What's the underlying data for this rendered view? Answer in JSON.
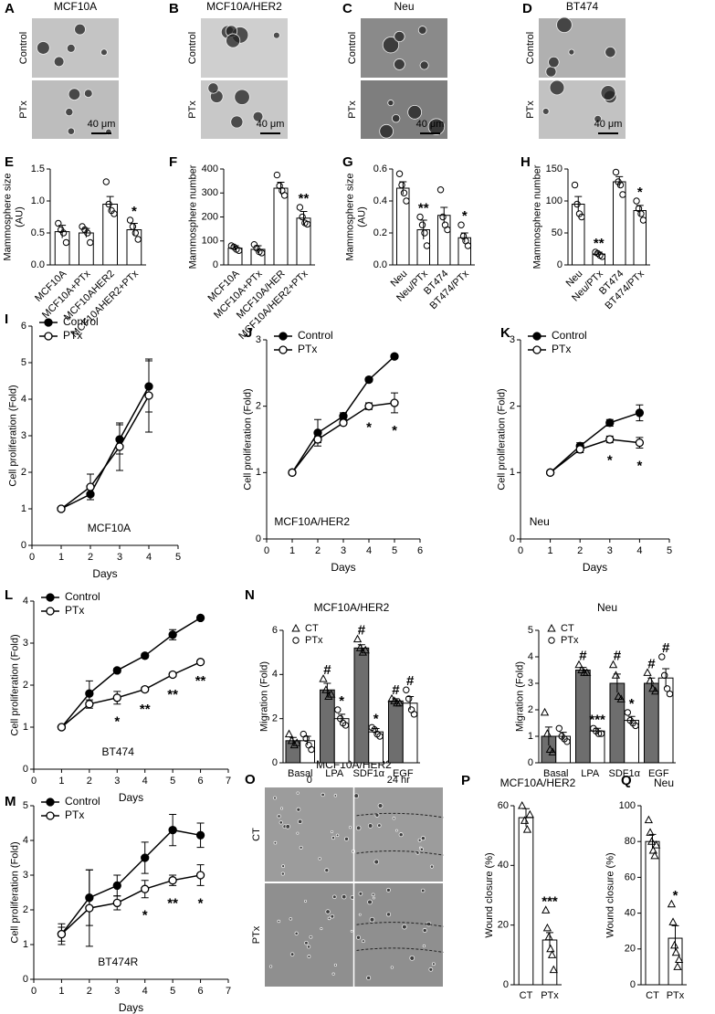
{
  "micrographs": [
    {
      "letter": "A",
      "title": "MCF10A",
      "rows": [
        "Control",
        "PTx"
      ],
      "scale_bar": "40 μm"
    },
    {
      "letter": "B",
      "title": "MCF10A/HER2",
      "rows": [
        "Control",
        "PTx"
      ],
      "scale_bar": "40 μm"
    },
    {
      "letter": "C",
      "title": "Neu",
      "rows": [
        "Control",
        "PTx"
      ],
      "scale_bar": "40 μm"
    },
    {
      "letter": "D",
      "title": "BT474",
      "rows": [
        "Control",
        "PTx"
      ],
      "scale_bar": "40 μm"
    },
    {
      "letter": "O",
      "title": "MCF10A/HER2",
      "columns": [
        "0",
        "24 hr"
      ],
      "rows": [
        "CT",
        "PTx"
      ]
    }
  ],
  "chart_data": [
    {
      "type": "bar",
      "letter": "E",
      "ylabel": [
        "Mammosphere size",
        "(AU)"
      ],
      "categories": [
        "MCF10A",
        "MCF10A+PTx",
        "MCF10AHER2",
        "MCF10AHER2+PTx"
      ],
      "values": [
        0.52,
        0.5,
        0.95,
        0.55
      ],
      "errors": [
        0.1,
        0.07,
        0.12,
        0.1
      ],
      "points": [
        [
          0.65,
          0.55,
          0.5,
          0.35
        ],
        [
          0.6,
          0.55,
          0.5,
          0.35
        ],
        [
          1.3,
          0.95,
          0.85,
          0.8
        ],
        [
          0.7,
          0.6,
          0.5,
          0.4
        ]
      ],
      "sig_labels": [
        null,
        null,
        null,
        "*"
      ],
      "color": "#ffffff",
      "point_marker": "circle",
      "ylim": [
        0,
        1.5
      ],
      "yticks": [
        {
          "value": 0,
          "label": "0.0"
        },
        0.5,
        {
          "value": 1,
          "label": "1.0"
        },
        1.5
      ]
    },
    {
      "type": "bar",
      "letter": "F",
      "ylabel": [
        "Mammosphere number"
      ],
      "categories": [
        "MCF10A",
        "MCF10A+PTx",
        "MCF10A/HER",
        "MCF10A/HER2+PTx"
      ],
      "values": [
        70,
        65,
        320,
        195
      ],
      "errors": [
        10,
        15,
        25,
        28
      ],
      "points": [
        [
          80,
          75,
          65,
          60
        ],
        [
          85,
          70,
          55,
          50
        ],
        [
          375,
          330,
          310,
          290
        ],
        [
          240,
          200,
          175,
          170
        ]
      ],
      "sig_labels": [
        null,
        null,
        null,
        "**"
      ],
      "color": "#ffffff",
      "point_marker": "circle",
      "ylim": [
        0,
        400
      ],
      "yticks": [
        0,
        100,
        200,
        300,
        400
      ]
    },
    {
      "type": "bar",
      "letter": "G",
      "ylabel": [
        "Mammosphere size",
        "(AU)"
      ],
      "categories": [
        "Neu",
        "Neu/PTx",
        "BT474",
        "BT474/PTx"
      ],
      "values": [
        0.48,
        0.22,
        0.31,
        0.17
      ],
      "errors": [
        0.04,
        0.06,
        0.05,
        0.03
      ],
      "points": [
        [
          0.57,
          0.5,
          0.45,
          0.4
        ],
        [
          0.3,
          0.25,
          0.2,
          0.12
        ],
        [
          0.47,
          0.3,
          0.25,
          0.22
        ],
        [
          0.25,
          0.18,
          0.15,
          0.12
        ]
      ],
      "sig_labels": [
        null,
        "**",
        null,
        "*"
      ],
      "color": "#ffffff",
      "point_marker": "circle",
      "ylim": [
        0,
        0.6
      ],
      "yticks": [
        {
          "value": 0,
          "label": "0.0"
        },
        0.2,
        0.4,
        0.6
      ]
    },
    {
      "type": "bar",
      "letter": "H",
      "ylabel": [
        "Mammosphere number"
      ],
      "categories": [
        "Neu",
        "Neu/PTx",
        "BT474",
        "BT474/PTx"
      ],
      "values": [
        95,
        17,
        130,
        85
      ],
      "errors": [
        12,
        3,
        8,
        8
      ],
      "points": [
        [
          125,
          95,
          80,
          75
        ],
        [
          20,
          18,
          15,
          13
        ],
        [
          145,
          130,
          125,
          110
        ],
        [
          100,
          88,
          80,
          70
        ]
      ],
      "sig_labels": [
        null,
        "**",
        null,
        "*"
      ],
      "color": "#ffffff",
      "point_marker": "circle",
      "ylim": [
        0,
        150
      ],
      "yticks": [
        0,
        50,
        100,
        150
      ]
    },
    {
      "type": "line",
      "letter": "I",
      "annotation": "MCF10A",
      "xlabel": "Days",
      "ylabel": [
        "Cell proliferation (Fold)"
      ],
      "x": [
        1,
        2,
        3,
        4
      ],
      "series": [
        {
          "name": "Control",
          "color": "#000000",
          "fill": "#000000",
          "values": [
            1,
            1.4,
            2.9,
            4.35
          ],
          "errors": [
            0.05,
            0.15,
            0.4,
            0.7
          ]
        },
        {
          "name": "PTx",
          "color": "#000000",
          "fill": "#ffffff",
          "values": [
            1,
            1.6,
            2.7,
            4.1
          ],
          "errors": [
            0.05,
            0.35,
            0.65,
            1.0
          ]
        }
      ],
      "xlim": [
        0,
        5
      ],
      "xticks": [
        0,
        1,
        2,
        3,
        4,
        5
      ],
      "ylim": [
        0,
        6
      ],
      "yticks": [
        0,
        1,
        2,
        3,
        4,
        5,
        6
      ]
    },
    {
      "type": "line",
      "letter": "J",
      "annotation": "MCF10A/HER2",
      "xlabel": "Days",
      "ylabel": [
        "Cell proliferation (Fold)"
      ],
      "x": [
        1,
        2,
        3,
        4,
        5
      ],
      "series": [
        {
          "name": "Control",
          "color": "#000000",
          "fill": "#000000",
          "values": [
            1,
            1.6,
            1.85,
            2.4,
            2.75
          ],
          "errors": [
            0.03,
            0.2,
            0.05,
            0.03,
            0.03
          ]
        },
        {
          "name": "PTx",
          "color": "#000000",
          "fill": "#ffffff",
          "values": [
            1,
            1.5,
            1.75,
            2.0,
            2.05
          ],
          "errors": [
            0.03,
            0.05,
            0.03,
            0.05,
            0.15
          ],
          "sig_labels": [
            null,
            null,
            null,
            "*",
            "*"
          ]
        }
      ],
      "xlim": [
        0,
        6
      ],
      "xticks": [
        0,
        1,
        2,
        3,
        4,
        5,
        6
      ],
      "ylim": [
        0,
        3
      ],
      "yticks": [
        0,
        1,
        2,
        3
      ]
    },
    {
      "type": "line",
      "letter": "K",
      "annotation": "Neu",
      "xlabel": "Days",
      "ylabel": [
        "Cell proliferation (Fold)"
      ],
      "x": [
        1,
        2,
        3,
        4
      ],
      "series": [
        {
          "name": "Control",
          "color": "#000000",
          "fill": "#000000",
          "values": [
            1,
            1.4,
            1.75,
            1.9
          ],
          "errors": [
            0.03,
            0.05,
            0.05,
            0.12
          ]
        },
        {
          "name": "PTx",
          "color": "#000000",
          "fill": "#ffffff",
          "values": [
            1,
            1.35,
            1.5,
            1.45
          ],
          "errors": [
            0.03,
            0.05,
            0.05,
            0.08
          ],
          "sig_labels": [
            null,
            null,
            "*",
            "*"
          ]
        }
      ],
      "xlim": [
        0,
        5
      ],
      "xticks": [
        0,
        1,
        2,
        3,
        4,
        5
      ],
      "ylim": [
        0,
        3
      ],
      "yticks": [
        0,
        1,
        2,
        3
      ]
    },
    {
      "type": "line",
      "letter": "L",
      "annotation": "BT474",
      "xlabel": "Days",
      "ylabel": [
        "Cell proliferation (Fold)"
      ],
      "x": [
        1,
        2,
        3,
        4,
        5,
        6
      ],
      "series": [
        {
          "name": "Control",
          "color": "#000000",
          "fill": "#000000",
          "values": [
            1,
            1.8,
            2.35,
            2.7,
            3.2,
            3.6
          ],
          "errors": [
            0.03,
            0.3,
            0.05,
            0.05,
            0.12,
            0.03
          ]
        },
        {
          "name": "PTx",
          "color": "#000000",
          "fill": "#ffffff",
          "values": [
            1,
            1.55,
            1.7,
            1.9,
            2.25,
            2.55
          ],
          "errors": [
            0.03,
            0.1,
            0.15,
            0.05,
            0.05,
            0.03
          ],
          "sig_labels": [
            null,
            null,
            "*",
            "**",
            "**",
            "**"
          ]
        }
      ],
      "xlim": [
        0,
        7
      ],
      "xticks": [
        0,
        1,
        2,
        3,
        4,
        5,
        6,
        7
      ],
      "ylim": [
        0,
        4
      ],
      "yticks": [
        0,
        1,
        2,
        3,
        4
      ]
    },
    {
      "type": "grouped_bar",
      "letter": "N",
      "title": "MCF10A/HER2",
      "ylabel": [
        "Migration (Fold)"
      ],
      "categories": [
        "Basal",
        "LPA",
        "SDF1α",
        "EGF"
      ],
      "series": [
        {
          "name": "CT",
          "color": "#6e6e6e",
          "point_marker": "triangle",
          "values": [
            1.0,
            3.3,
            5.2,
            2.8
          ],
          "errors": [
            0.15,
            0.3,
            0.15,
            0.1
          ],
          "points": [
            [
              1.3,
              1.0,
              0.8,
              0.9
            ],
            [
              3.8,
              3.3,
              3.0,
              3.1
            ],
            [
              5.6,
              5.2,
              5.0,
              5.1
            ],
            [
              2.9,
              2.8,
              2.7,
              2.7
            ]
          ],
          "sig_labels": [
            null,
            "#",
            "#",
            "#"
          ]
        },
        {
          "name": "PTx",
          "color": "#ffffff",
          "point_marker": "circle",
          "values": [
            1.0,
            2.0,
            1.4,
            2.7
          ],
          "errors": [
            0.2,
            0.2,
            0.15,
            0.3
          ],
          "points": [
            [
              1.3,
              1.1,
              0.8,
              0.6
            ],
            [
              2.4,
              2.0,
              1.8,
              1.7
            ],
            [
              1.6,
              1.5,
              1.3,
              1.2
            ],
            [
              3.3,
              2.9,
              2.4,
              2.2
            ]
          ],
          "sig_labels": [
            null,
            "*",
            "*",
            "#"
          ]
        }
      ],
      "ylim": [
        0,
        6
      ],
      "yticks": [
        0,
        2,
        4,
        6
      ]
    },
    {
      "type": "grouped_bar",
      "title": "Neu",
      "ylabel": [
        "Migration (Fold)"
      ],
      "categories": [
        "Basal",
        "LPA",
        "SDF1α",
        "EGF"
      ],
      "series": [
        {
          "name": "CT",
          "color": "#6e6e6e",
          "point_marker": "triangle",
          "values": [
            1.0,
            3.5,
            3.0,
            3.0
          ],
          "errors": [
            0.35,
            0.1,
            0.35,
            0.2
          ],
          "points": [
            [
              1.9,
              1.1,
              0.5,
              0.4
            ],
            [
              3.7,
              3.5,
              3.4,
              3.4
            ],
            [
              3.7,
              3.3,
              2.5,
              2.4
            ],
            [
              3.4,
              3.1,
              2.8,
              2.7
            ]
          ],
          "sig_labels": [
            null,
            "#",
            "#",
            "#"
          ]
        },
        {
          "name": "PTx",
          "color": "#ffffff",
          "point_marker": "circle",
          "values": [
            1.0,
            1.2,
            1.6,
            3.2
          ],
          "errors": [
            0.15,
            0.1,
            0.15,
            0.35
          ],
          "points": [
            [
              1.3,
              1.0,
              0.9,
              0.8
            ],
            [
              1.3,
              1.2,
              1.1,
              1.1
            ],
            [
              1.9,
              1.6,
              1.5,
              1.4
            ],
            [
              4.0,
              3.3,
              2.8,
              2.6
            ]
          ],
          "sig_labels": [
            null,
            "***",
            "*",
            "#"
          ]
        }
      ],
      "ylim": [
        0,
        5
      ],
      "yticks": [
        0,
        1,
        2,
        3,
        4,
        5
      ]
    },
    {
      "type": "line",
      "letter": "M",
      "annotation": "BT474R",
      "xlabel": "Days",
      "ylabel": [
        "Cell proliferation (Fold)"
      ],
      "x": [
        1,
        2,
        3,
        4,
        5,
        6
      ],
      "series": [
        {
          "name": "Control",
          "color": "#000000",
          "fill": "#000000",
          "values": [
            1.3,
            2.35,
            2.7,
            3.5,
            4.3,
            4.15
          ],
          "errors": [
            0.3,
            0.8,
            0.3,
            0.45,
            0.45,
            0.35
          ]
        },
        {
          "name": "PTx",
          "color": "#000000",
          "fill": "#ffffff",
          "values": [
            1.3,
            2.05,
            2.2,
            2.6,
            2.85,
            3.0
          ],
          "errors": [
            0.2,
            1.1,
            0.2,
            0.25,
            0.15,
            0.3
          ],
          "sig_labels": [
            null,
            null,
            null,
            "*",
            "**",
            "*"
          ]
        }
      ],
      "xlim": [
        0,
        7
      ],
      "xticks": [
        0,
        1,
        2,
        3,
        4,
        5,
        6,
        7
      ],
      "ylim": [
        0,
        5
      ],
      "yticks": [
        0,
        1,
        2,
        3,
        4,
        5
      ]
    },
    {
      "type": "bar",
      "letter": "P",
      "title": "MCF10A/HER2",
      "ylabel": [
        "Wound closure (%)"
      ],
      "categories": [
        "CT",
        "PTx"
      ],
      "values": [
        56,
        15
      ],
      "errors": [
        3,
        2.5
      ],
      "points": [
        [
          60,
          55,
          52,
          57
        ],
        [
          25,
          19,
          16,
          12,
          10,
          5
        ]
      ],
      "sig_labels": [
        null,
        "***"
      ],
      "color": "#ffffff",
      "point_marker": "triangle",
      "ylim": [
        0,
        60
      ],
      "yticks": [
        0,
        20,
        40,
        60
      ]
    },
    {
      "type": "bar",
      "letter": "Q",
      "title": "Neu",
      "ylabel": [
        "Wound closure (%)"
      ],
      "categories": [
        "CT",
        "PTx"
      ],
      "values": [
        80,
        26
      ],
      "errors": [
        4,
        7
      ],
      "points": [
        [
          92,
          85,
          80,
          75,
          72,
          78
        ],
        [
          45,
          35,
          22,
          18,
          10,
          14
        ]
      ],
      "sig_labels": [
        null,
        "*"
      ],
      "color": "#ffffff",
      "point_marker": "triangle",
      "ylim": [
        0,
        100
      ],
      "yticks": [
        0,
        20,
        40,
        60,
        80,
        100
      ]
    }
  ]
}
